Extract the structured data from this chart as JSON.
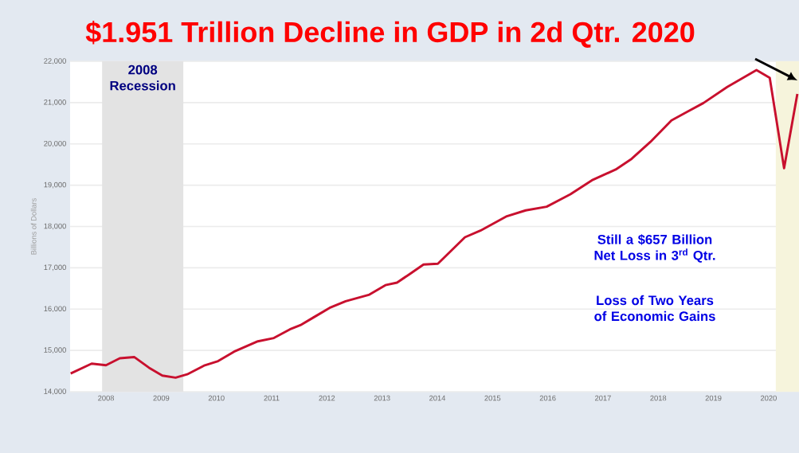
{
  "chart_data": {
    "type": "line",
    "title": "$1.951 Trillion Decline in GDP in 2d Qtr. 2020",
    "ylabel": "Billions of Dollars",
    "x": [
      2007.36,
      2007.74,
      2008.0,
      2008.25,
      2008.51,
      2008.78,
      2009.02,
      2009.26,
      2009.47,
      2009.79,
      2010.03,
      2010.32,
      2010.75,
      2011.04,
      2011.33,
      2011.52,
      2011.76,
      2012.05,
      2012.34,
      2012.77,
      2013.06,
      2013.27,
      2013.49,
      2013.75,
      2014.01,
      2014.5,
      2014.78,
      2015.26,
      2015.6,
      2015.98,
      2016.41,
      2016.8,
      2017.23,
      2017.52,
      2017.86,
      2018.24,
      2018.53,
      2018.82,
      2019.25,
      2019.78,
      2020.02,
      2020.28,
      2020.52
    ],
    "series": [
      {
        "color": "#c8102e",
        "values": [
          14440,
          14680,
          14640,
          14810,
          14840,
          14580,
          14390,
          14340,
          14420,
          14640,
          14740,
          14970,
          15220,
          15300,
          15510,
          15610,
          15800,
          16030,
          16190,
          16350,
          16580,
          16640,
          16840,
          17080,
          17100,
          17740,
          17900,
          18250,
          18390,
          18480,
          18780,
          19120,
          19380,
          19640,
          20050,
          20570,
          20780,
          20990,
          21380,
          21790,
          21600,
          19410,
          21210
        ]
      }
    ],
    "xlim": [
      2007.35,
      2020.55
    ],
    "ylim": [
      14000,
      22000
    ],
    "xticks": [
      2008,
      2009,
      2010,
      2011,
      2012,
      2013,
      2014,
      2015,
      2016,
      2017,
      2018,
      2019,
      2020
    ],
    "yticks": [
      {
        "value": 14000,
        "label": "14,000"
      },
      {
        "value": 15000,
        "label": "15,000"
      },
      {
        "value": 16000,
        "label": "16,000"
      },
      {
        "value": 17000,
        "label": "17,000"
      },
      {
        "value": 18000,
        "label": "18,000"
      },
      {
        "value": 19000,
        "label": "19,000"
      },
      {
        "value": 20000,
        "label": "20,000"
      },
      {
        "value": 21000,
        "label": "21,000"
      },
      {
        "value": 22000,
        "label": "22,000"
      }
    ],
    "bands": [
      {
        "axis": "x",
        "from": 2007.93,
        "to": 2009.4,
        "label": "2008 Recession",
        "color": "#e3e3e3"
      },
      {
        "axis": "x",
        "from": 2020.13,
        "to": 2020.55,
        "color": "#f6f4dc"
      }
    ],
    "annotations": [
      "Still a $657 Billion Net Loss in 3$^{rd}$ Qtr.",
      "Loss of Two Years of Economic Gains"
    ],
    "grid": "y",
    "marker": "none",
    "line_style": "solid"
  }
}
